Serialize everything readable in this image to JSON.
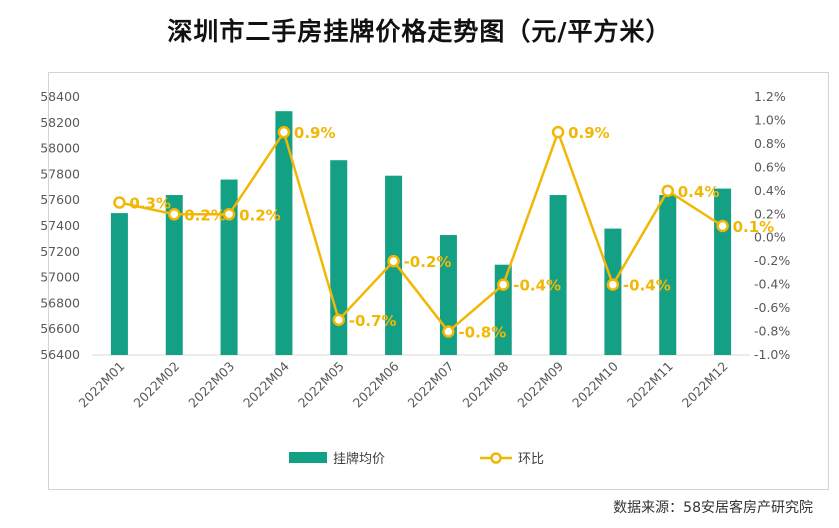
{
  "title": "深圳市二手房挂牌价格走势图（元/平方米）",
  "source": "数据来源：58安居客房产研究院",
  "colors": {
    "bar": "#13A085",
    "line": "#F2B705"
  },
  "chart_data": {
    "type": "bar",
    "categories": [
      "2022M01",
      "2022M02",
      "2022M03",
      "2022M04",
      "2022M05",
      "2022M06",
      "2022M07",
      "2022M08",
      "2022M09",
      "2022M10",
      "2022M11",
      "2022M12"
    ],
    "series": [
      {
        "name": "挂牌均价",
        "type": "bar",
        "axis": "left",
        "values": [
          57500,
          57640,
          57760,
          58290,
          57910,
          57790,
          57330,
          57100,
          57640,
          57380,
          57640,
          57690
        ]
      },
      {
        "name": "环比",
        "type": "line",
        "axis": "right",
        "values": [
          0.3,
          0.2,
          0.2,
          0.9,
          -0.7,
          -0.2,
          -0.8,
          -0.4,
          0.9,
          -0.4,
          0.4,
          0.1
        ],
        "data_labels": [
          "0.3%",
          "0.2%",
          "0.2%",
          "0.9%",
          "-0.7%",
          "-0.2%",
          "-0.8%",
          "-0.4%",
          "0.9%",
          "-0.4%",
          "0.4%",
          "0.1%"
        ]
      }
    ],
    "left_axis": {
      "ylim": [
        56400,
        58400
      ],
      "ticks": [
        "56400",
        "56600",
        "56800",
        "57000",
        "57200",
        "57400",
        "57600",
        "57800",
        "58000",
        "58200",
        "58400"
      ]
    },
    "right_axis": {
      "ylim": [
        -1.0,
        1.2
      ],
      "ticks": [
        "-1.0%",
        "-0.8%",
        "-0.6%",
        "-0.4%",
        "-0.2%",
        "0.0%",
        "0.2%",
        "0.4%",
        "0.6%",
        "0.8%",
        "1.0%",
        "1.2%"
      ]
    },
    "legend": {
      "position": "bottom",
      "items": [
        "挂牌均价",
        "环比"
      ]
    },
    "grid": false
  }
}
